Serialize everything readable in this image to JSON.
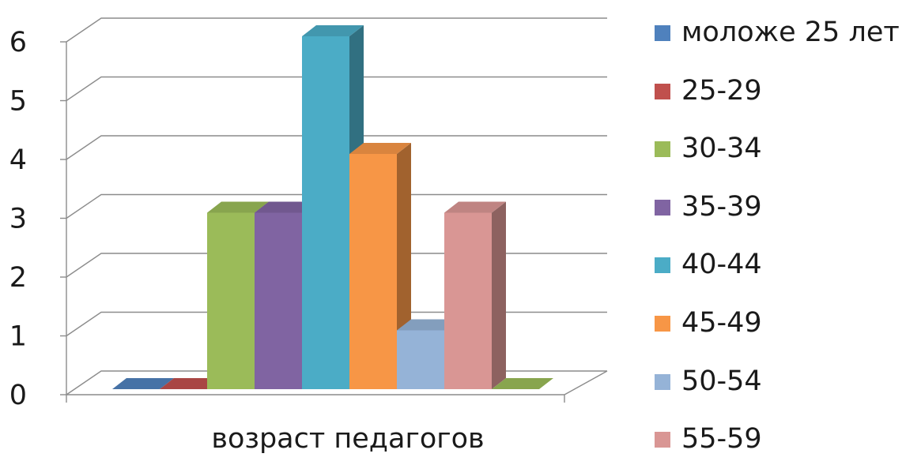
{
  "chart_data": {
    "type": "bar",
    "categories": [
      "возраст педагогов"
    ],
    "series": [
      {
        "name": "моложе 25 лет",
        "values": [
          0
        ],
        "color": "#4F81BD"
      },
      {
        "name": "25-29",
        "values": [
          0
        ],
        "color": "#C0504D"
      },
      {
        "name": "30-34",
        "values": [
          3
        ],
        "color": "#9BBB59"
      },
      {
        "name": "35-39",
        "values": [
          3
        ],
        "color": "#8064A2"
      },
      {
        "name": "40-44",
        "values": [
          6
        ],
        "color": "#4BACC6"
      },
      {
        "name": "45-49",
        "values": [
          4
        ],
        "color": "#F79646"
      },
      {
        "name": "50-54",
        "values": [
          1
        ],
        "color": "#95B3D7"
      },
      {
        "name": "55-59",
        "values": [
          3
        ],
        "color": "#D99694"
      },
      {
        "name": "",
        "values": [
          0
        ],
        "color": "#9BBB59"
      }
    ],
    "y_ticks": [
      "0",
      "1",
      "2",
      "3",
      "4",
      "5",
      "6"
    ],
    "ylim": [
      0,
      6
    ],
    "grid": true,
    "legend": "right",
    "style": "3d-column"
  }
}
